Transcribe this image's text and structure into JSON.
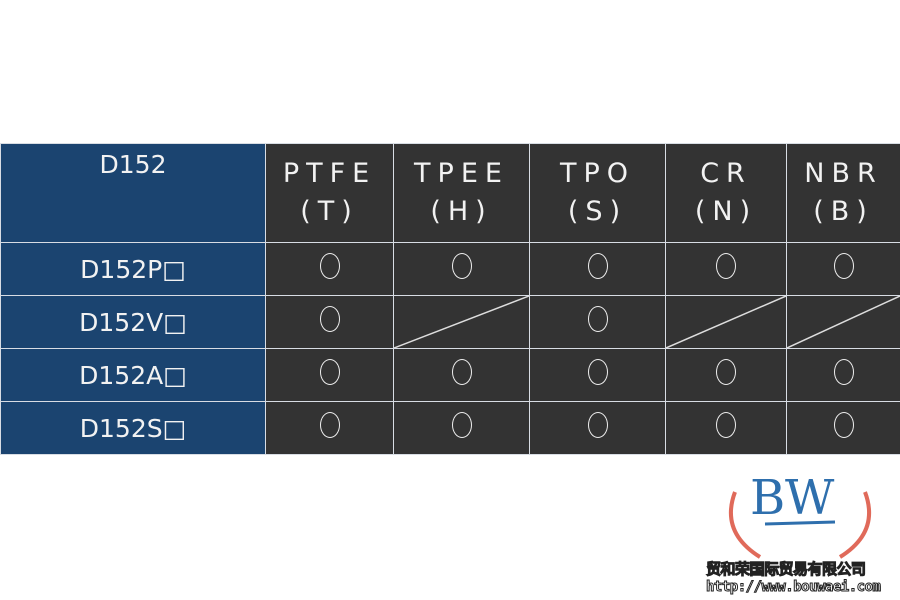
{
  "table": {
    "corner": "D152",
    "columns": [
      {
        "name": "PTFE",
        "code": "(T)"
      },
      {
        "name": "TPEE",
        "code": "(H)"
      },
      {
        "name": "TPO",
        "code": "(S)"
      },
      {
        "name": "CR",
        "code": "(N)"
      },
      {
        "name": "NBR",
        "code": "(B)"
      }
    ],
    "rows": [
      {
        "label": "D152P□",
        "values": [
          "○",
          "○",
          "○",
          "○",
          "○"
        ]
      },
      {
        "label": "D152V□",
        "values": [
          "○",
          "/",
          "○",
          "/",
          "/"
        ]
      },
      {
        "label": "D152A□",
        "values": [
          "○",
          "○",
          "○",
          "○",
          "○"
        ]
      },
      {
        "label": "D152S□",
        "values": [
          "○",
          "○",
          "○",
          "○",
          "○"
        ]
      }
    ]
  },
  "logo": {
    "mark": "BW",
    "company": "贸和荣国际贸易有限公司",
    "url": "http://www.bouwaei.com"
  },
  "colors": {
    "label_bg": "#1b4470",
    "cell_bg": "#333333"
  }
}
